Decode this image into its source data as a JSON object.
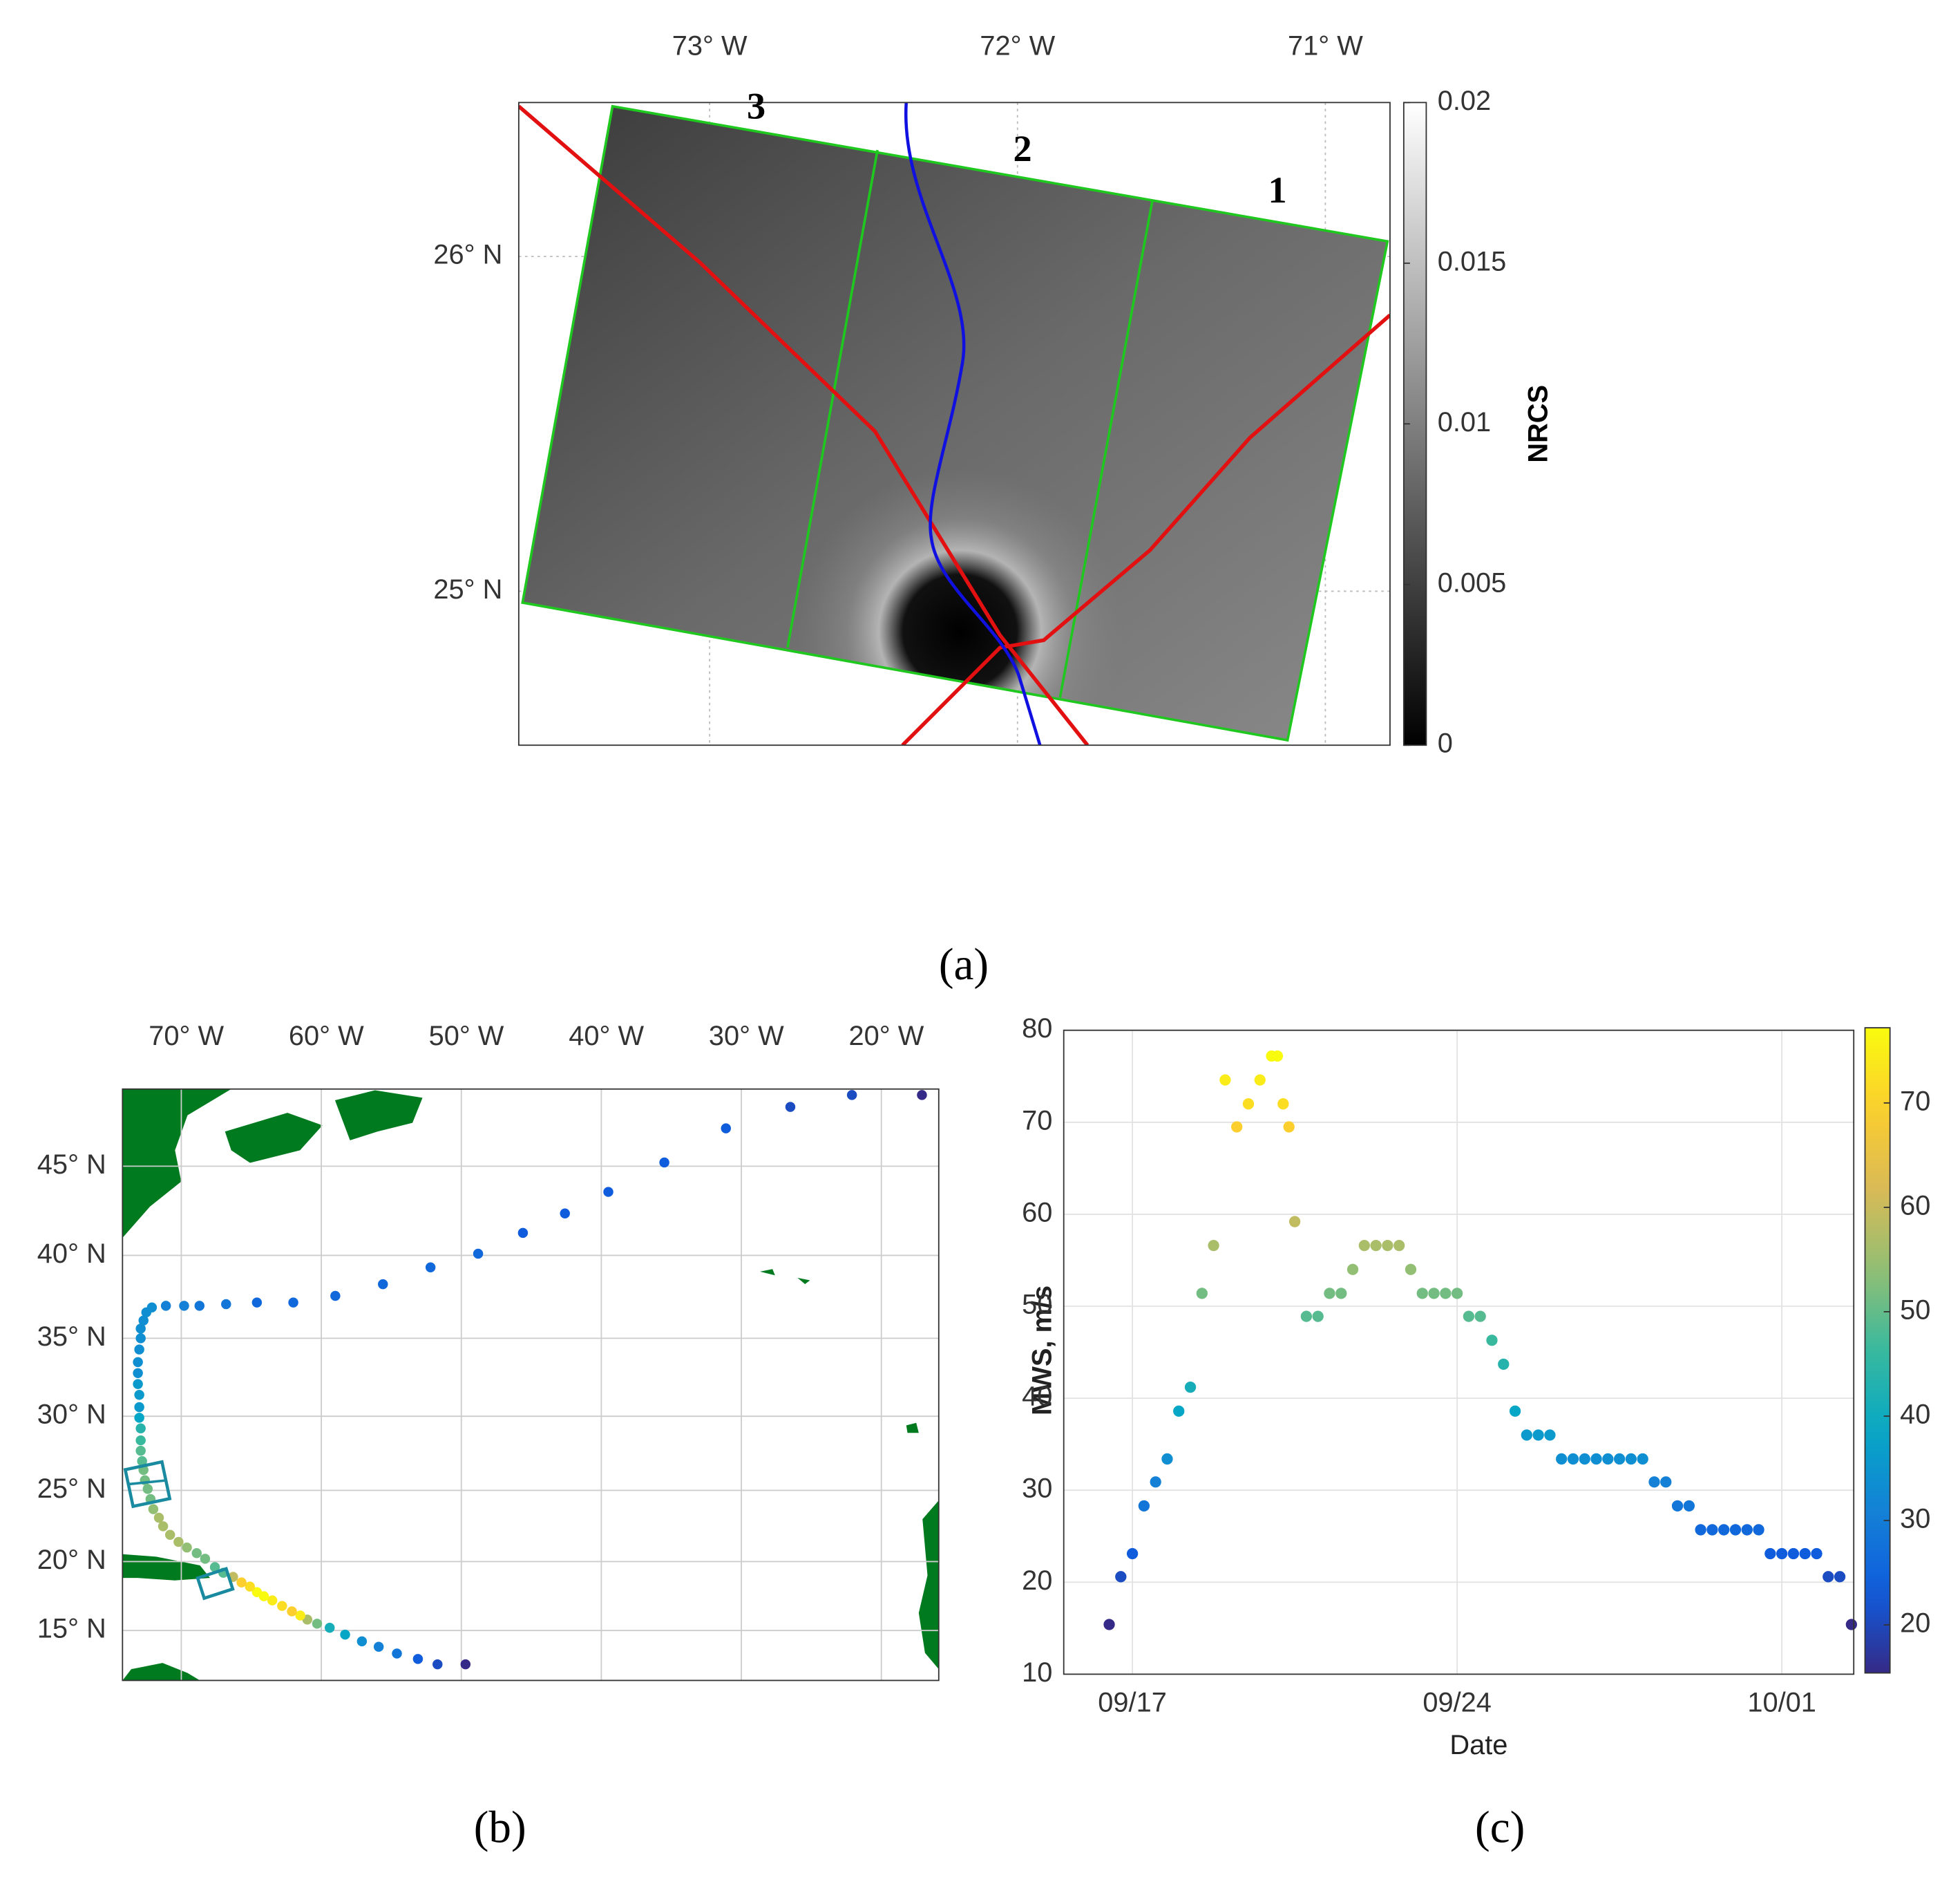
{
  "chart_data": [
    {
      "type": "image-map",
      "label": "(a)",
      "xlim": [
        -73.62,
        -70.79
      ],
      "ylim": [
        24.54,
        26.46
      ],
      "xticks": [
        {
          "value": -73,
          "label": "73° W"
        },
        {
          "value": -72,
          "label": "72° W"
        },
        {
          "value": -71,
          "label": "71° W"
        }
      ],
      "yticks": [
        {
          "value": 26,
          "label": "26° N"
        },
        {
          "value": 25,
          "label": "25° N"
        }
      ],
      "grid": true,
      "swath_labels": [
        "3",
        "2",
        "1"
      ],
      "colorbar": {
        "label": "NRCS",
        "lim": [
          0,
          0.02
        ],
        "ticks": [
          0,
          0.005,
          0.01,
          0.015,
          0.02
        ]
      }
    },
    {
      "type": "map-track",
      "label": "(b)",
      "projection": "mercator",
      "xlim": [
        -74.2,
        -15.9
      ],
      "ylim": [
        11.3,
        49.0
      ],
      "xticks": [
        {
          "value": -70,
          "label": "70° W"
        },
        {
          "value": -60,
          "label": "60° W"
        },
        {
          "value": -50,
          "label": "50° W"
        },
        {
          "value": -40,
          "label": "40° W"
        },
        {
          "value": -30,
          "label": "30° W"
        },
        {
          "value": -20,
          "label": "20° W"
        }
      ],
      "yticks": [
        {
          "value": 15,
          "label": "15° N"
        },
        {
          "value": 20,
          "label": "20° N"
        },
        {
          "value": 25,
          "label": "25° N"
        },
        {
          "value": 30,
          "label": "30° N"
        },
        {
          "value": 35,
          "label": "35° N"
        },
        {
          "value": 40,
          "label": "40° N"
        },
        {
          "value": 45,
          "label": "45° N"
        }
      ],
      "grid": true,
      "lon": [
        -49.7,
        -51.7,
        -53.1,
        -54.6,
        -55.9,
        -57.1,
        -58.3,
        -59.4,
        -60.3,
        -61.0,
        -61.5,
        -62.1,
        -62.8,
        -63.5,
        -64.1,
        -64.6,
        -65.1,
        -65.7,
        -66.3,
        -67.0,
        -67.6,
        -68.3,
        -68.9,
        -69.6,
        -70.2,
        -70.8,
        -71.3,
        -71.6,
        -72.0,
        -72.2,
        -72.4,
        -72.6,
        -72.7,
        -72.8,
        -72.9,
        -72.9,
        -72.9,
        -73.0,
        -73.0,
        -73.0,
        -73.1,
        -73.1,
        -73.1,
        -73.0,
        -72.9,
        -72.9,
        -72.7,
        -72.5,
        -72.1,
        -71.1,
        -69.8,
        -68.7,
        -66.8,
        -64.6,
        -62.0,
        -59.0,
        -55.6,
        -52.2,
        -48.8,
        -45.6,
        -42.6,
        -39.5,
        -35.5,
        -31.1,
        -26.5,
        -22.1,
        -17.1
      ],
      "lat": [
        12.5,
        12.5,
        12.9,
        13.3,
        13.8,
        14.2,
        14.7,
        15.2,
        15.5,
        15.8,
        16.1,
        16.4,
        16.8,
        17.2,
        17.5,
        17.8,
        18.2,
        18.5,
        18.9,
        19.2,
        19.6,
        20.2,
        20.6,
        21.0,
        21.4,
        21.9,
        22.5,
        23.1,
        23.7,
        24.4,
        25.1,
        25.7,
        26.4,
        27.0,
        27.7,
        28.4,
        29.2,
        29.9,
        30.6,
        31.4,
        32.1,
        32.8,
        33.5,
        34.3,
        35.0,
        35.6,
        36.1,
        36.6,
        36.9,
        37.0,
        37.0,
        37.0,
        37.1,
        37.2,
        37.2,
        37.6,
        38.3,
        39.3,
        40.1,
        41.3,
        42.4,
        43.6,
        45.2,
        47.0,
        48.1,
        48.7,
        48.7
      ]
    },
    {
      "type": "scatter",
      "label": "(c)",
      "xlabel": "Date",
      "ylabel": "MWS, m/s",
      "xlim": [
        15.52,
        32.55
      ],
      "ylim": [
        10,
        80
      ],
      "xticks": [
        {
          "value": 17,
          "label": "09/17"
        },
        {
          "value": 24,
          "label": "09/24"
        },
        {
          "value": 31,
          "label": "10/01"
        }
      ],
      "yticks": [
        10,
        20,
        30,
        40,
        50,
        60,
        70,
        80
      ],
      "grid": true,
      "colormap": "parula",
      "clim": [
        15.4,
        77.2
      ],
      "cticks": [
        20,
        30,
        40,
        50,
        60,
        70
      ],
      "x": [
        16.5,
        16.75,
        17,
        17.25,
        17.5,
        17.75,
        18,
        18.25,
        18.5,
        18.75,
        19,
        19.25,
        19.5,
        19.75,
        20,
        20.125,
        20.25,
        20.375,
        20.5,
        20.75,
        21,
        21.25,
        21.5,
        21.75,
        22,
        22.25,
        22.5,
        22.75,
        23,
        23.25,
        23.5,
        23.75,
        24,
        24.25,
        24.5,
        24.75,
        25,
        25.25,
        25.5,
        25.75,
        26,
        26.25,
        26.5,
        26.75,
        27,
        27.25,
        27.5,
        27.75,
        28,
        28.25,
        28.5,
        28.75,
        29,
        29.25,
        29.5,
        29.75,
        30,
        30.25,
        30.5,
        30.75,
        31,
        31.25,
        31.5,
        31.75,
        32,
        32.25,
        32.5
      ],
      "values": [
        15.4,
        20.6,
        23.1,
        28.3,
        30.9,
        33.4,
        38.6,
        41.2,
        51.4,
        56.6,
        74.6,
        69.5,
        72.0,
        74.6,
        77.2,
        77.2,
        72.0,
        69.5,
        59.2,
        48.9,
        48.9,
        51.4,
        51.4,
        54.0,
        56.6,
        56.6,
        56.6,
        56.6,
        54.0,
        51.4,
        51.4,
        51.4,
        51.4,
        48.9,
        48.9,
        46.3,
        43.7,
        38.6,
        36.0,
        36.0,
        36.0,
        33.4,
        33.4,
        33.4,
        33.4,
        33.4,
        33.4,
        33.4,
        33.4,
        30.9,
        30.9,
        28.3,
        28.3,
        25.7,
        25.7,
        25.7,
        25.7,
        25.7,
        25.7,
        23.1,
        23.1,
        23.1,
        23.1,
        23.1,
        20.6,
        20.6,
        15.4
      ]
    }
  ]
}
